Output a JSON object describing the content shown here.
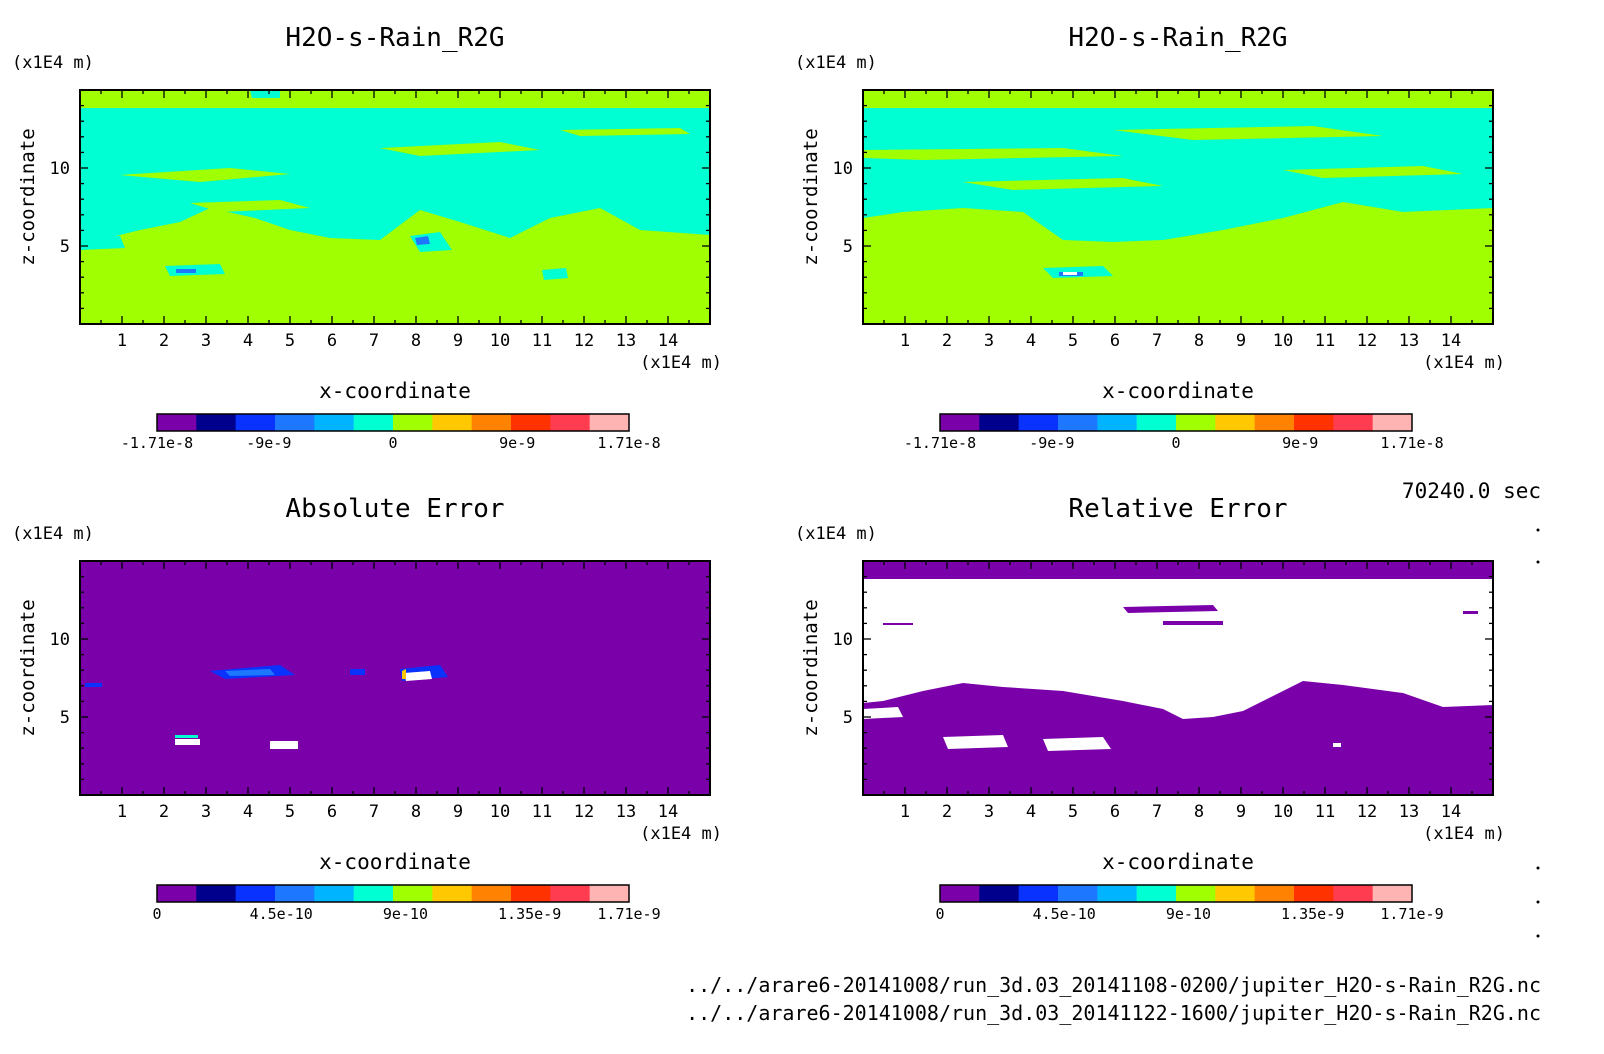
{
  "time_label": "70240.0 sec",
  "source_files": [
    "../../arare6-20141008/run_3d.03_20141108-0200/jupiter_H2O-s-Rain_R2G.nc",
    "../../arare6-20141008/run_3d.03_20141122-1600/jupiter_H2O-s-Rain_R2G.nc"
  ],
  "chart_data": [
    {
      "type": "heatmap",
      "title": "H2O-s-Rain_R2G",
      "xlabel": "x-coordinate",
      "ylabel": "z-coordinate",
      "x_unit": "(x1E4 m)",
      "y_unit": "(x1E4 m)",
      "xlim": [
        0,
        15
      ],
      "ylim": [
        0,
        15
      ],
      "xticks": [
        1,
        2,
        3,
        4,
        5,
        6,
        7,
        8,
        9,
        10,
        11,
        12,
        13,
        14
      ],
      "yticks": [
        5,
        10
      ],
      "colorbar": {
        "colors": [
          "#7a00aa",
          "#00008c",
          "#0a32ff",
          "#1e78ff",
          "#00b4ff",
          "#00ffd2",
          "#a0ff00",
          "#ffc800",
          "#ff8200",
          "#ff3200",
          "#ff3c50",
          "#ffb4b4"
        ],
        "tick_labels": [
          "-1.71e-8",
          "-9e-9",
          "0",
          "9e-9",
          "1.71e-8"
        ],
        "tick_values": [
          -1.71e-08,
          -9e-09,
          0,
          9e-09,
          1.71e-08
        ],
        "range": [
          -1.71e-08,
          1.71e-08
        ]
      }
    },
    {
      "type": "heatmap",
      "title": "H2O-s-Rain_R2G",
      "xlabel": "x-coordinate",
      "ylabel": "z-coordinate",
      "x_unit": "(x1E4 m)",
      "y_unit": "(x1E4 m)",
      "xlim": [
        0,
        15
      ],
      "ylim": [
        0,
        15
      ],
      "xticks": [
        1,
        2,
        3,
        4,
        5,
        6,
        7,
        8,
        9,
        10,
        11,
        12,
        13,
        14
      ],
      "yticks": [
        5,
        10
      ],
      "colorbar": {
        "colors": [
          "#7a00aa",
          "#00008c",
          "#0a32ff",
          "#1e78ff",
          "#00b4ff",
          "#00ffd2",
          "#a0ff00",
          "#ffc800",
          "#ff8200",
          "#ff3200",
          "#ff3c50",
          "#ffb4b4"
        ],
        "tick_labels": [
          "-1.71e-8",
          "-9e-9",
          "0",
          "9e-9",
          "1.71e-8"
        ],
        "tick_values": [
          -1.71e-08,
          -9e-09,
          0,
          9e-09,
          1.71e-08
        ],
        "range": [
          -1.71e-08,
          1.71e-08
        ]
      }
    },
    {
      "type": "heatmap",
      "title": "Absolute Error",
      "xlabel": "x-coordinate",
      "ylabel": "z-coordinate",
      "x_unit": "(x1E4 m)",
      "y_unit": "(x1E4 m)",
      "xlim": [
        0,
        15
      ],
      "ylim": [
        0,
        15
      ],
      "xticks": [
        1,
        2,
        3,
        4,
        5,
        6,
        7,
        8,
        9,
        10,
        11,
        12,
        13,
        14
      ],
      "yticks": [
        5,
        10
      ],
      "colorbar": {
        "colors": [
          "#7a00aa",
          "#00008c",
          "#0a32ff",
          "#1e78ff",
          "#00b4ff",
          "#00ffd2",
          "#a0ff00",
          "#ffc800",
          "#ff8200",
          "#ff3200",
          "#ff3c50",
          "#ffb4b4"
        ],
        "tick_labels": [
          "0",
          "4.5e-10",
          "9e-10",
          "1.35e-9",
          "1.71e-9"
        ],
        "tick_values": [
          0,
          4.5e-10,
          9e-10,
          1.35e-09,
          1.71e-09
        ],
        "range": [
          0,
          1.71e-09
        ]
      }
    },
    {
      "type": "heatmap",
      "title": "Relative Error",
      "xlabel": "x-coordinate",
      "ylabel": "z-coordinate",
      "x_unit": "(x1E4 m)",
      "y_unit": "(x1E4 m)",
      "xlim": [
        0,
        15
      ],
      "ylim": [
        0,
        15
      ],
      "xticks": [
        1,
        2,
        3,
        4,
        5,
        6,
        7,
        8,
        9,
        10,
        11,
        12,
        13,
        14
      ],
      "yticks": [
        5,
        10
      ],
      "colorbar": {
        "colors": [
          "#7a00aa",
          "#00008c",
          "#0a32ff",
          "#1e78ff",
          "#00b4ff",
          "#00ffd2",
          "#a0ff00",
          "#ffc800",
          "#ff8200",
          "#ff3200",
          "#ff3c50",
          "#ffb4b4"
        ],
        "tick_labels": [
          "0",
          "4.5e-10",
          "9e-10",
          "1.35e-9",
          "1.71e-9"
        ],
        "tick_values": [
          0,
          4.5e-10,
          9e-10,
          1.35e-09,
          1.71e-09
        ],
        "range": [
          0,
          1.71e-09
        ]
      }
    }
  ]
}
